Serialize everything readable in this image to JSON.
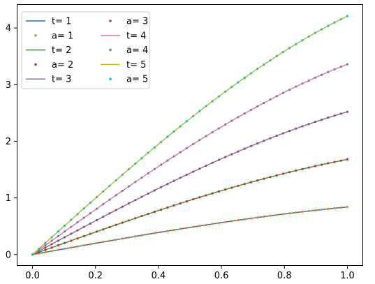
{
  "chart_data": {
    "type": "line",
    "title": "",
    "xlabel": "",
    "ylabel": "",
    "xlim": [
      -0.05,
      1.05
    ],
    "ylim": [
      -0.2,
      4.42
    ],
    "xticks": [
      0.0,
      0.2,
      0.4,
      0.6,
      0.8,
      1.0
    ],
    "xtick_labels": [
      "0.0",
      "0.2",
      "0.4",
      "0.6",
      "0.8",
      "1.0"
    ],
    "yticks": [
      0,
      1,
      2,
      3,
      4
    ],
    "ytick_labels": [
      "0",
      "1",
      "2",
      "3",
      "4"
    ],
    "grid": false,
    "legend": {
      "placement": "top-left",
      "columns": 2
    },
    "curves": [
      {
        "t": 1,
        "end_value": 0.84
      },
      {
        "t": 2,
        "end_value": 1.68
      },
      {
        "t": 3,
        "end_value": 2.52
      },
      {
        "t": 4,
        "end_value": 3.36
      },
      {
        "t": 5,
        "end_value": 4.21
      }
    ],
    "series": [
      {
        "name": "t= 1",
        "style": "line",
        "color": "#1f77b4",
        "t": 1
      },
      {
        "name": "a= 1",
        "style": "dots",
        "color": "#ff7f0e",
        "t": 1
      },
      {
        "name": "t= 2",
        "style": "line",
        "color": "#2ca02c",
        "t": 2
      },
      {
        "name": "a= 2",
        "style": "dots",
        "color": "#d62728",
        "t": 2
      },
      {
        "name": "t= 3",
        "style": "line",
        "color": "#9467bd",
        "t": 3
      },
      {
        "name": "a= 3",
        "style": "dots",
        "color": "#8c564b",
        "t": 3
      },
      {
        "name": "t= 4",
        "style": "line",
        "color": "#e377c2",
        "t": 4
      },
      {
        "name": "a= 4",
        "style": "dots",
        "color": "#7f7f7f",
        "t": 4
      },
      {
        "name": "t= 5",
        "style": "line",
        "color": "#bcbd22",
        "t": 5
      },
      {
        "name": "a= 5",
        "style": "dots",
        "color": "#17becf",
        "t": 5
      }
    ],
    "x_points": 50
  }
}
